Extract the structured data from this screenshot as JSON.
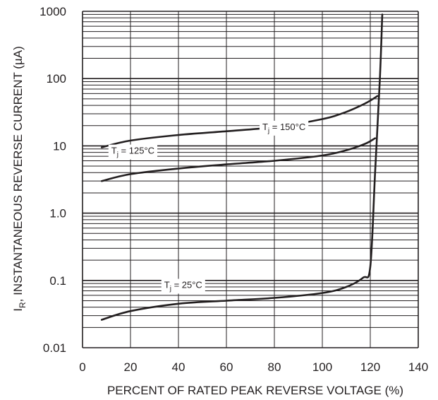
{
  "chart_data": {
    "type": "line",
    "xlabel": "PERCENT OF RATED PEAK REVERSE VOLTAGE (%)",
    "ylabel_main": "I",
    "ylabel_sub": "R",
    "ylabel_rest": ", INSTANTANEOUS REVERSE CURRENT (µA)",
    "x_ticks": [
      "0",
      "20",
      "40",
      "60",
      "80",
      "100",
      "120",
      "140"
    ],
    "x_tick_values": [
      0,
      20,
      40,
      60,
      80,
      100,
      120,
      140
    ],
    "y_ticks": [
      "1000",
      "100",
      "10",
      "1.0",
      "0.1",
      "0.01"
    ],
    "y_tick_values": [
      1000,
      100,
      10,
      1,
      0.1,
      0.01
    ],
    "xlim": [
      0,
      140
    ],
    "ylim": [
      0.01,
      1000
    ],
    "y_scale": "log",
    "grid": true,
    "series": [
      {
        "label_prefix": "T",
        "label_sub": "j",
        "label_suffix": " = 150°C",
        "points": [
          [
            8,
            9.5
          ],
          [
            20,
            12
          ],
          [
            40,
            14.5
          ],
          [
            60,
            16.5
          ],
          [
            80,
            19
          ],
          [
            100,
            25
          ],
          [
            110,
            32
          ],
          [
            118,
            43
          ],
          [
            123,
            55
          ]
        ],
        "label_x": 84,
        "label_y": 19
      },
      {
        "label_prefix": "T",
        "label_sub": "j",
        "label_suffix": " = 125°C",
        "points": [
          [
            8,
            3.0
          ],
          [
            20,
            3.8
          ],
          [
            40,
            4.6
          ],
          [
            60,
            5.3
          ],
          [
            80,
            6.0
          ],
          [
            100,
            7.2
          ],
          [
            110,
            8.6
          ],
          [
            118,
            10.8
          ],
          [
            122,
            13
          ]
        ],
        "label_x": 21,
        "label_y": 8.4
      },
      {
        "label_prefix": "T",
        "label_sub": "j",
        "label_suffix": " = 25°C",
        "points": [
          [
            8,
            0.026
          ],
          [
            20,
            0.035
          ],
          [
            40,
            0.045
          ],
          [
            60,
            0.05
          ],
          [
            80,
            0.055
          ],
          [
            100,
            0.065
          ],
          [
            110,
            0.08
          ],
          [
            117,
            0.11
          ],
          [
            120,
            0.16
          ],
          [
            122,
            4
          ],
          [
            124,
            100
          ],
          [
            125,
            900
          ]
        ],
        "label_x": 42,
        "label_y": 0.085
      }
    ]
  }
}
